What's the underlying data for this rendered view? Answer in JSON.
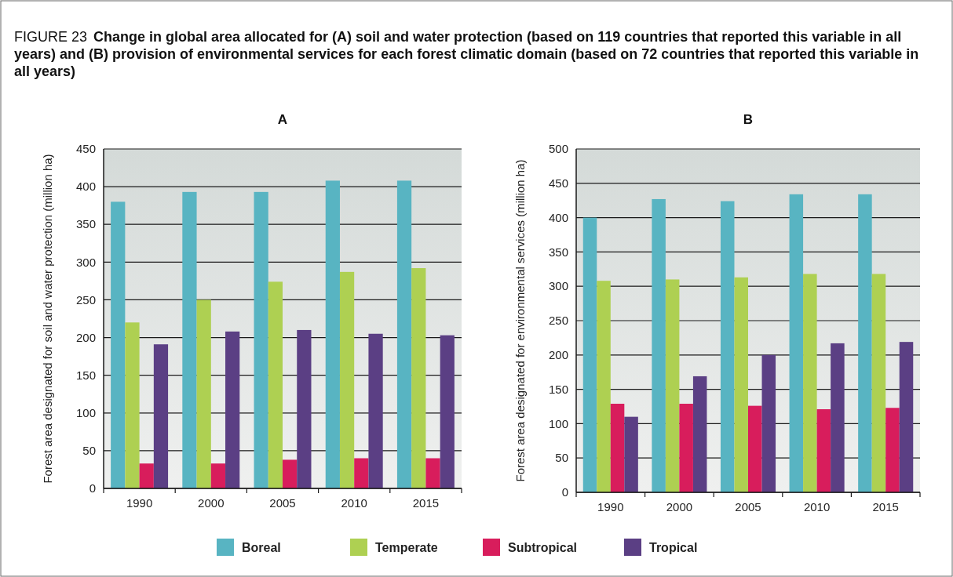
{
  "chart_data": [
    {
      "type": "bar",
      "title": "A",
      "ylabel": "Forest area designated for soil and water protection (million ha)",
      "annotations": [
        "FIGURE 23 Change in global area allocated for (A) soil and water protection (based on 119 countries that reported this variable in all years) and (B) provision of environmental services for each forest climatic domain (based on 72 countries that reported this variable in all years)"
      ],
      "categories": [
        "1990",
        "2000",
        "2005",
        "2010",
        "2015"
      ],
      "series": [
        {
          "name": "Boreal",
          "color": "#58b4c2",
          "values": [
            380,
            393,
            393,
            408,
            408
          ]
        },
        {
          "name": "Temperate",
          "color": "#aed052",
          "values": [
            220,
            250,
            274,
            287,
            292
          ]
        },
        {
          "name": "Subtropical",
          "color": "#d81d5c",
          "values": [
            33,
            33,
            38,
            40,
            40
          ]
        },
        {
          "name": "Tropical",
          "color": "#5b3f84",
          "values": [
            191,
            208,
            210,
            205,
            203
          ]
        }
      ],
      "ylim": [
        0,
        450
      ],
      "yticks": [
        0,
        50,
        100,
        150,
        200,
        250,
        300,
        350,
        400,
        450
      ],
      "grid": "y",
      "legend": "bottom"
    },
    {
      "type": "bar",
      "title": "B",
      "ylabel": "Forest area designated for environmental services (million ha)",
      "categories": [
        "1990",
        "2000",
        "2005",
        "2010",
        "2015"
      ],
      "series": [
        {
          "color": "#58b4c2",
          "values": [
            400,
            427,
            424,
            434,
            434
          ]
        },
        {
          "color": "#aed052",
          "values": [
            308,
            310,
            313,
            318,
            318
          ]
        },
        {
          "color": "#d81d5c",
          "values": [
            129,
            129,
            126,
            121,
            123
          ]
        },
        {
          "color": "#5b3f84",
          "values": [
            110,
            169,
            200,
            217,
            219
          ]
        }
      ],
      "ylim": [
        0,
        500
      ],
      "yticks": [
        0,
        50,
        100,
        150,
        200,
        250,
        300,
        350,
        400,
        450,
        500
      ],
      "grid": "y"
    }
  ]
}
